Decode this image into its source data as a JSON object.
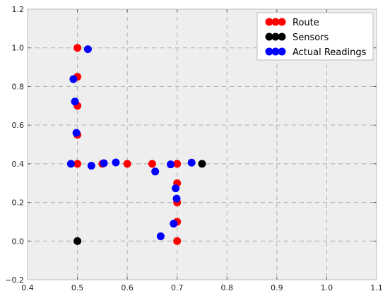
{
  "chart_data": {
    "type": "scatter",
    "title": "",
    "xlabel": "",
    "ylabel": "",
    "xlim": [
      0.4,
      1.1
    ],
    "ylim": [
      -0.2,
      1.2
    ],
    "xticks": [
      0.4,
      0.5,
      0.6,
      0.7,
      0.8,
      0.9,
      1.0,
      1.1
    ],
    "yticks": [
      -0.2,
      0.0,
      0.2,
      0.4,
      0.6,
      0.8,
      1.0,
      1.2
    ],
    "xtick_labels": [
      "0.4",
      "0.5",
      "0.6",
      "0.7",
      "0.8",
      "0.9",
      "1.0",
      "1.1"
    ],
    "ytick_labels": [
      "−0.2",
      "0.0",
      "0.2",
      "0.4",
      "0.6",
      "0.8",
      "1.0",
      "1.2"
    ],
    "grid": true,
    "legend_position": "top-right",
    "series": [
      {
        "name": "Route",
        "color": "#ff0000",
        "points": [
          [
            0.5,
            1.0
          ],
          [
            0.5,
            0.85
          ],
          [
            0.5,
            0.7
          ],
          [
            0.5,
            0.55
          ],
          [
            0.5,
            0.4
          ],
          [
            0.55,
            0.4
          ],
          [
            0.6,
            0.4
          ],
          [
            0.65,
            0.4
          ],
          [
            0.7,
            0.4
          ],
          [
            0.7,
            0.3
          ],
          [
            0.7,
            0.2
          ],
          [
            0.7,
            0.1
          ],
          [
            0.7,
            0.0
          ]
        ]
      },
      {
        "name": "Sensors",
        "color": "#000000",
        "points": [
          [
            0.5,
            0.0
          ],
          [
            0.75,
            0.4
          ]
        ]
      },
      {
        "name": "Actual Readings",
        "color": "#0000ff",
        "points": [
          [
            0.521,
            0.993
          ],
          [
            0.492,
            0.838
          ],
          [
            0.495,
            0.722
          ],
          [
            0.498,
            0.56
          ],
          [
            0.487,
            0.4
          ],
          [
            0.528,
            0.39
          ],
          [
            0.553,
            0.403
          ],
          [
            0.577,
            0.407
          ],
          [
            0.656,
            0.36
          ],
          [
            0.687,
            0.397
          ],
          [
            0.729,
            0.406
          ],
          [
            0.697,
            0.273
          ],
          [
            0.699,
            0.22
          ],
          [
            0.693,
            0.09
          ],
          [
            0.667,
            0.025
          ]
        ]
      }
    ]
  }
}
